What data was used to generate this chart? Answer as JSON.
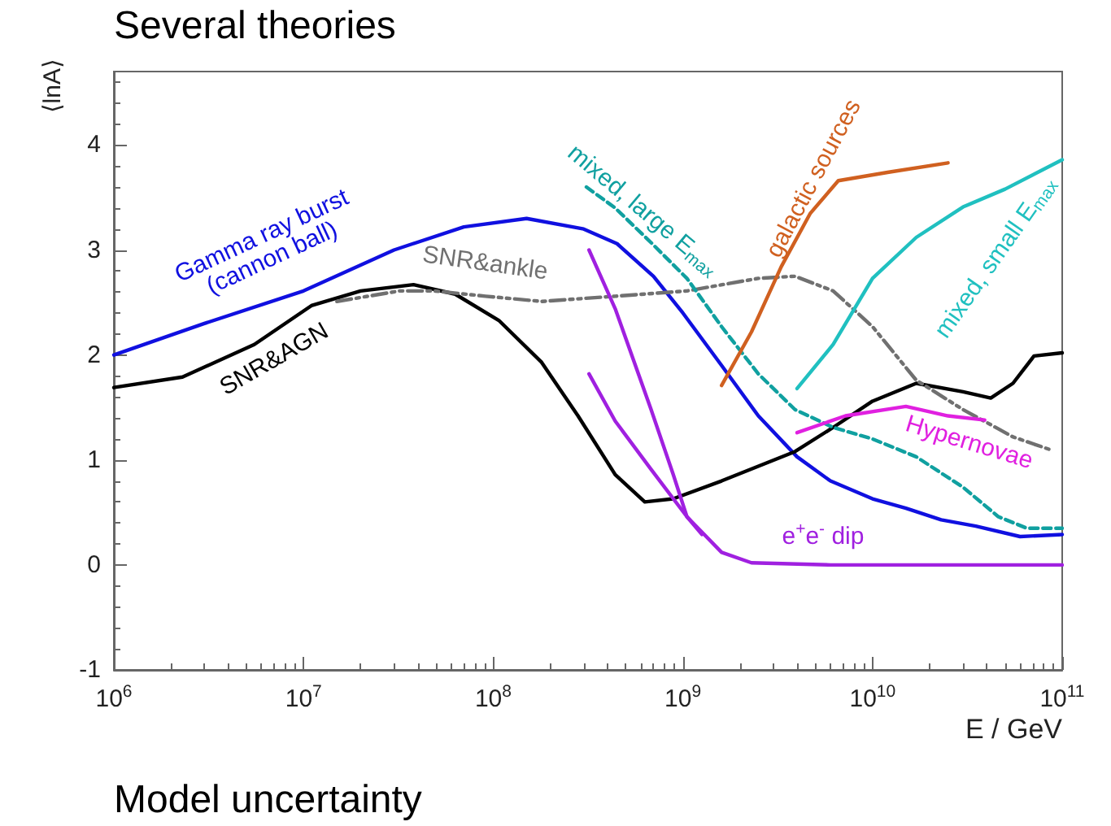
{
  "chart_data": {
    "type": "line",
    "annotations": [
      "Several theories",
      "Model uncertainty"
    ],
    "xlabel": "E / GeV",
    "ylabel": "⟨lnA⟩",
    "log": "x",
    "grid": false,
    "legend": false,
    "marker": "none",
    "xlim": [
      1000000.0,
      100000000000.0
    ],
    "xticks": [
      {
        "value": 1000000.0,
        "label": "10$^{6}$"
      },
      {
        "value": 10000000.0,
        "label": "10$^{7}$"
      },
      {
        "value": 100000000.0,
        "label": "10$^{8}$"
      },
      {
        "value": 1000000000.0,
        "label": "10$^{9}$"
      },
      {
        "value": 10000000000.0,
        "label": "10$^{10}$"
      },
      {
        "value": 100000000000.0,
        "label": "10$^{11}$"
      }
    ],
    "ylim": [
      -1,
      4.7
    ],
    "yticks": [
      -1,
      0,
      1,
      2,
      3,
      4
    ],
    "series": [
      {
        "name": "Gamma ray burst\n(cannon ball)",
        "color": "#1010e0",
        "line_style": "solid",
        "x": [
          1000000.0,
          3000000.0,
          10000000.0,
          30000000.0,
          70000000.0,
          150000000.0,
          300000000.0,
          450000000.0,
          700000000.0,
          1000000000.0,
          1600000000.0,
          2500000000.0,
          4000000000.0,
          6000000000.0,
          10000000000.0,
          15000000000.0,
          23000000000.0,
          35000000000.0,
          60000000000.0,
          100000000000.0
        ],
        "values": [
          2.0,
          2.3,
          2.61,
          3.0,
          3.22,
          3.3,
          3.2,
          3.06,
          2.75,
          2.4,
          1.9,
          1.42,
          1.03,
          0.8,
          0.63,
          0.54,
          0.43,
          0.37,
          0.27,
          0.29
        ]
      },
      {
        "name": "SNR&AGN",
        "color": "#000000",
        "line_style": "solid",
        "x": [
          1000000.0,
          2300000.0,
          5500000.0,
          11000000.0,
          20000000.0,
          38000000.0,
          63000000.0,
          107000000.0,
          180000000.0,
          280000000.0,
          440000000.0,
          630000000.0,
          890000000.0,
          1600000000.0,
          3900000000.0,
          6200000000.0,
          10000000000.0,
          17000000000.0,
          30000000000.0,
          42000000000.0,
          55000000000.0,
          71000000000.0,
          100000000000.0
        ],
        "values": [
          1.69,
          1.79,
          2.1,
          2.47,
          2.61,
          2.67,
          2.58,
          2.33,
          1.93,
          1.42,
          0.86,
          0.6,
          0.63,
          0.8,
          1.08,
          1.31,
          1.56,
          1.73,
          1.65,
          1.59,
          1.73,
          1.99,
          2.02
        ]
      },
      {
        "name": "SNR&ankle",
        "color": "#707070",
        "line_style": "dashdot",
        "x": [
          15000000.0,
          32000000.0,
          49000000.0,
          91000000.0,
          180000000.0,
          440000000.0,
          1050000000.0,
          2500000000.0,
          3900000000.0,
          6200000000.0,
          10000000000.0,
          17000000000.0,
          30000000000.0,
          55000000000.0,
          89000000000.0
        ],
        "values": [
          2.51,
          2.61,
          2.61,
          2.56,
          2.51,
          2.56,
          2.61,
          2.73,
          2.75,
          2.61,
          2.27,
          1.76,
          1.48,
          1.22,
          1.09
        ]
      },
      {
        "name": "mixed, large E$_{max}$",
        "color": "#10a0a0",
        "line_style": "dashed",
        "x": [
          310000000.0,
          440000000.0,
          680000000.0,
          1050000000.0,
          1600000000.0,
          2500000000.0,
          3900000000.0,
          6200000000.0,
          10000000000.0,
          17000000000.0,
          30000000000.0,
          46000000000.0,
          65000000000.0,
          100000000000.0
        ],
        "values": [
          3.6,
          3.4,
          3.07,
          2.73,
          2.27,
          1.82,
          1.48,
          1.31,
          1.2,
          1.03,
          0.74,
          0.46,
          0.35,
          0.35
        ]
      },
      {
        "name": "galactic sources",
        "color": "#d06020",
        "line_style": "solid",
        "x": [
          1600000000.0,
          2300000000.0,
          3300000000.0,
          4700000000.0,
          6600000000.0,
          12000000000.0,
          25000000000.0
        ],
        "values": [
          1.71,
          2.22,
          2.84,
          3.35,
          3.66,
          3.74,
          3.83
        ]
      },
      {
        "name": "mixed, small E$_{max}$",
        "color": "#20c0c0",
        "line_style": "solid",
        "x": [
          4000000000.0,
          6200000000.0,
          10000000000.0,
          17000000000.0,
          30000000000.0,
          50000000000.0,
          100000000000.0
        ],
        "values": [
          1.68,
          2.1,
          2.73,
          3.12,
          3.41,
          3.58,
          3.86
        ]
      },
      {
        "name": "Hypernovae",
        "color": "#e020e0",
        "line_style": "solid",
        "x": [
          4000000000.0,
          7200000000.0,
          15000000000.0,
          25000000000.0,
          39000000000.0
        ],
        "values": [
          1.26,
          1.42,
          1.51,
          1.42,
          1.38
        ]
      },
      {
        "color": "#a020e0",
        "line_style": "solid",
        "x": [
          320000000.0,
          440000000.0,
          680000000.0,
          890000000.0,
          1050000000.0,
          1260000000.0
        ],
        "values": [
          3.0,
          2.44,
          1.48,
          0.86,
          0.46,
          0.29
        ]
      },
      {
        "name": "e$^{+}$e$^{-}$ dip",
        "color": "#a020e0",
        "line_style": "solid",
        "x": [
          320000000.0,
          440000000.0,
          680000000.0,
          1050000000.0,
          1600000000.0,
          2300000000.0,
          6000000000.0,
          100000000000.0
        ],
        "values": [
          1.82,
          1.37,
          0.91,
          0.46,
          0.12,
          0.02,
          0.0,
          0.0
        ]
      }
    ]
  }
}
